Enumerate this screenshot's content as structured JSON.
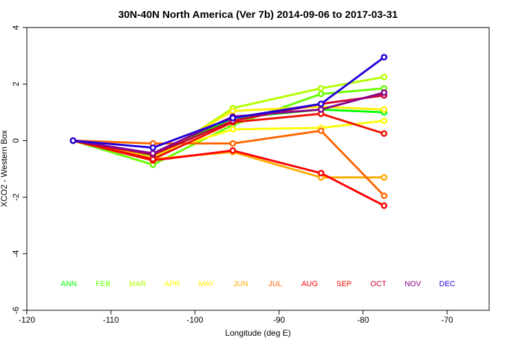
{
  "chart_data": {
    "type": "line",
    "title": "30N-40N North America (Ver 7b)   2014-09-06 to 2017-03-31",
    "xlabel": "Longitude (deg E)",
    "ylabel": "XCO2 - Western Box",
    "xlim": [
      -120,
      -65
    ],
    "ylim": [
      -6,
      4
    ],
    "xticks": [
      -120,
      -110,
      -100,
      -90,
      -80,
      -70
    ],
    "yticks": [
      -6,
      -4,
      -2,
      0,
      2,
      4
    ],
    "grid": false,
    "legend": {
      "placement": "bottom-inside",
      "orientation": "horizontal"
    },
    "series": [
      {
        "name": "ANN",
        "color": "#00ff00",
        "x": [
          -114.5,
          -105,
          -95.5,
          -85,
          -77.5
        ],
        "y": [
          0,
          -0.55,
          0.8,
          1.1,
          1.0
        ]
      },
      {
        "name": "FEB",
        "color": "#66ff00",
        "x": [
          -114.5,
          -105,
          -95.5,
          -85,
          -77.5
        ],
        "y": [
          0,
          -0.85,
          0.55,
          1.65,
          1.85
        ]
      },
      {
        "name": "MAR",
        "color": "#b3ff00",
        "x": [
          -114.5,
          -105,
          -95.5,
          -85,
          -77.5
        ],
        "y": [
          0,
          -0.7,
          1.15,
          1.85,
          2.25
        ]
      },
      {
        "name": "APR",
        "color": "#ffff00",
        "x": [
          -114.5,
          -105,
          -95.5,
          -85,
          -77.5
        ],
        "y": [
          0,
          -0.5,
          0.4,
          0.45,
          0.7
        ]
      },
      {
        "name": "MAY",
        "color": "#ffee00",
        "x": [
          -114.5,
          -105,
          -95.5,
          -85,
          -77.5
        ],
        "y": [
          0,
          -0.6,
          1.05,
          1.2,
          1.1
        ]
      },
      {
        "name": "JUN",
        "color": "#ffaa00",
        "x": [
          -114.5,
          -105,
          -95.5,
          -85,
          -77.5
        ],
        "y": [
          0,
          -0.65,
          -0.4,
          -1.3,
          -1.3
        ]
      },
      {
        "name": "JUL",
        "color": "#ff6600",
        "x": [
          -114.5,
          -105,
          -95.5,
          -85,
          -77.5
        ],
        "y": [
          0,
          -0.1,
          -0.1,
          0.35,
          -1.95
        ]
      },
      {
        "name": "AUG",
        "color": "#ff0000",
        "x": [
          -114.5,
          -105,
          -95.5,
          -85,
          -77.5
        ],
        "y": [
          0,
          -0.7,
          -0.35,
          -1.15,
          -2.3
        ]
      },
      {
        "name": "SEP",
        "color": "#ee1100",
        "x": [
          -114.5,
          -105,
          -95.5,
          -85,
          -77.5
        ],
        "y": [
          0,
          -0.65,
          0.65,
          0.95,
          0.25
        ]
      },
      {
        "name": "OCT",
        "color": "#cc0033",
        "x": [
          -114.5,
          -105,
          -95.5,
          -85,
          -77.5
        ],
        "y": [
          0,
          -0.5,
          0.7,
          1.3,
          1.6
        ]
      },
      {
        "name": "NOV",
        "color": "#880088",
        "x": [
          -114.5,
          -105,
          -95.5,
          -85,
          -77.5
        ],
        "y": [
          0,
          -0.45,
          0.85,
          1.1,
          1.7
        ]
      },
      {
        "name": "DEC",
        "color": "#2200dd",
        "x": [
          -114.5,
          -105,
          -95.5,
          -85,
          -77.5
        ],
        "y": [
          0,
          -0.25,
          0.8,
          1.3,
          2.95
        ]
      }
    ]
  }
}
